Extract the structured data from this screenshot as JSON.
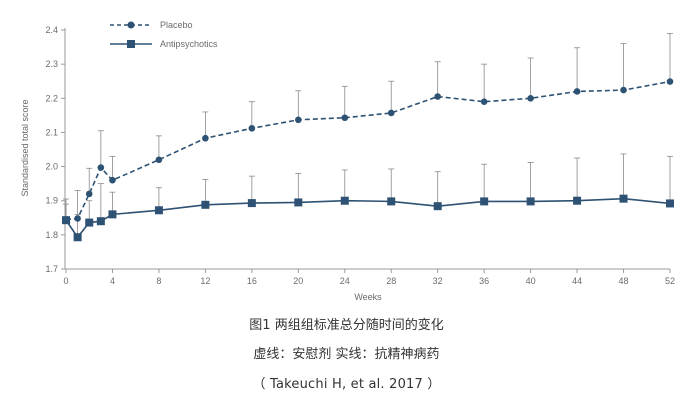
{
  "chart_data": {
    "type": "line",
    "xlabel": "Weeks",
    "ylabel": "Standardised total score",
    "x_ticks": [
      0,
      4,
      8,
      12,
      16,
      20,
      24,
      28,
      32,
      36,
      40,
      44,
      48,
      52
    ],
    "y_ticks": [
      "1.7",
      "1.8",
      "1.9",
      "2.0",
      "2.1",
      "2.2",
      "2.3",
      "2.4"
    ],
    "xlim": [
      0,
      52
    ],
    "ylim": [
      1.7,
      2.4
    ],
    "grid": false,
    "legend_position": "top-left",
    "series": [
      {
        "name": "Placebo",
        "style": "dashed-circle",
        "x": [
          0,
          1,
          2,
          3,
          4,
          8,
          12,
          16,
          20,
          24,
          28,
          32,
          36,
          40,
          44,
          48,
          52
        ],
        "y": [
          1.845,
          1.848,
          1.92,
          1.997,
          1.96,
          2.02,
          2.083,
          2.112,
          2.137,
          2.143,
          2.157,
          2.205,
          2.19,
          2.2,
          2.22,
          2.224,
          2.249
        ],
        "err_upper": [
          1.905,
          1.93,
          1.995,
          2.105,
          2.03,
          2.09,
          2.16,
          2.19,
          2.222,
          2.235,
          2.25,
          2.307,
          2.3,
          2.318,
          2.348,
          2.36,
          2.39
        ]
      },
      {
        "name": "Antipsychotics",
        "style": "solid-square",
        "x": [
          0,
          1,
          2,
          3,
          4,
          8,
          12,
          16,
          20,
          24,
          28,
          32,
          36,
          40,
          44,
          48,
          52
        ],
        "y": [
          1.843,
          1.793,
          1.836,
          1.84,
          1.86,
          1.872,
          1.888,
          1.893,
          1.895,
          1.9,
          1.898,
          1.884,
          1.898,
          1.898,
          1.9,
          1.906,
          1.892
        ],
        "err_upper": [
          1.89,
          1.86,
          1.9,
          1.95,
          1.925,
          1.938,
          1.962,
          1.972,
          1.98,
          1.99,
          1.993,
          1.985,
          2.007,
          2.012,
          2.025,
          2.037,
          2.03
        ]
      }
    ],
    "colors": {
      "series": "#2e5273",
      "axis": "#9a9a9a",
      "text": "#6b6b6b"
    }
  },
  "captions": {
    "line1": "图1 两组组标准总分随时间的变化",
    "line2": "虚线：安慰剂   实线：抗精神病药",
    "line3": "（ Takeuchi H, et al. 2017 ）"
  }
}
